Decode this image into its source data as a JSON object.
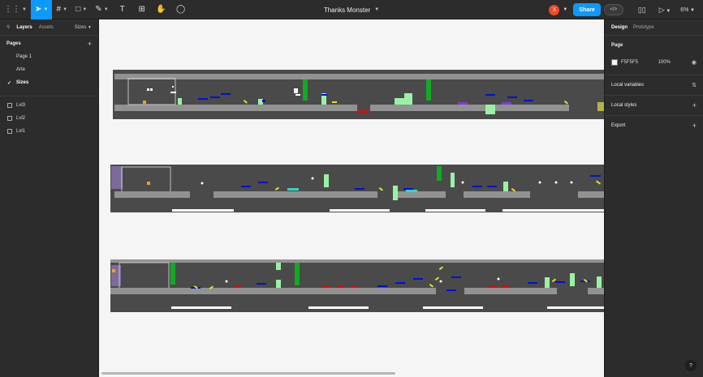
{
  "toolbar": {
    "file_title": "Thanks Monster",
    "share_label": "Share",
    "avatar_initial": "X",
    "zoom_label": "6%",
    "dev_mode_glyph": "</>"
  },
  "left_panel": {
    "tabs": {
      "layers": "Layers",
      "assets": "Assets",
      "sizes": "Sizes"
    },
    "pages_heading": "Pages",
    "pages": [
      {
        "label": "Page 1"
      },
      {
        "label": "Arte"
      },
      {
        "label": "Sizes"
      }
    ],
    "current_page_index": 2,
    "layers": [
      {
        "label": "Lvl3"
      },
      {
        "label": "Lvl2"
      },
      {
        "label": "Lvl1"
      }
    ]
  },
  "right_panel": {
    "tabs": {
      "design": "Design",
      "prototype": "Prototype"
    },
    "page_heading": "Page",
    "page_color_hex": "F5F5F5",
    "page_color_opacity": "100%",
    "local_variables": "Local variables",
    "local_styles": "Local styles",
    "export": "Export"
  },
  "help_glyph": "?",
  "colors": {
    "accent": "#0d99ff",
    "canvas": "#f5f5f5",
    "level_bg": "#4a4a4a",
    "platform": "#929292",
    "blue_block": "#0011cc",
    "green_block": "#11aa22",
    "light_green_block": "#99f2a4",
    "yellow_item": "#e8e023",
    "red_hazard": "#cc1111",
    "purple_item": "#7a3fd0",
    "teal_item": "#33d4c4"
  }
}
